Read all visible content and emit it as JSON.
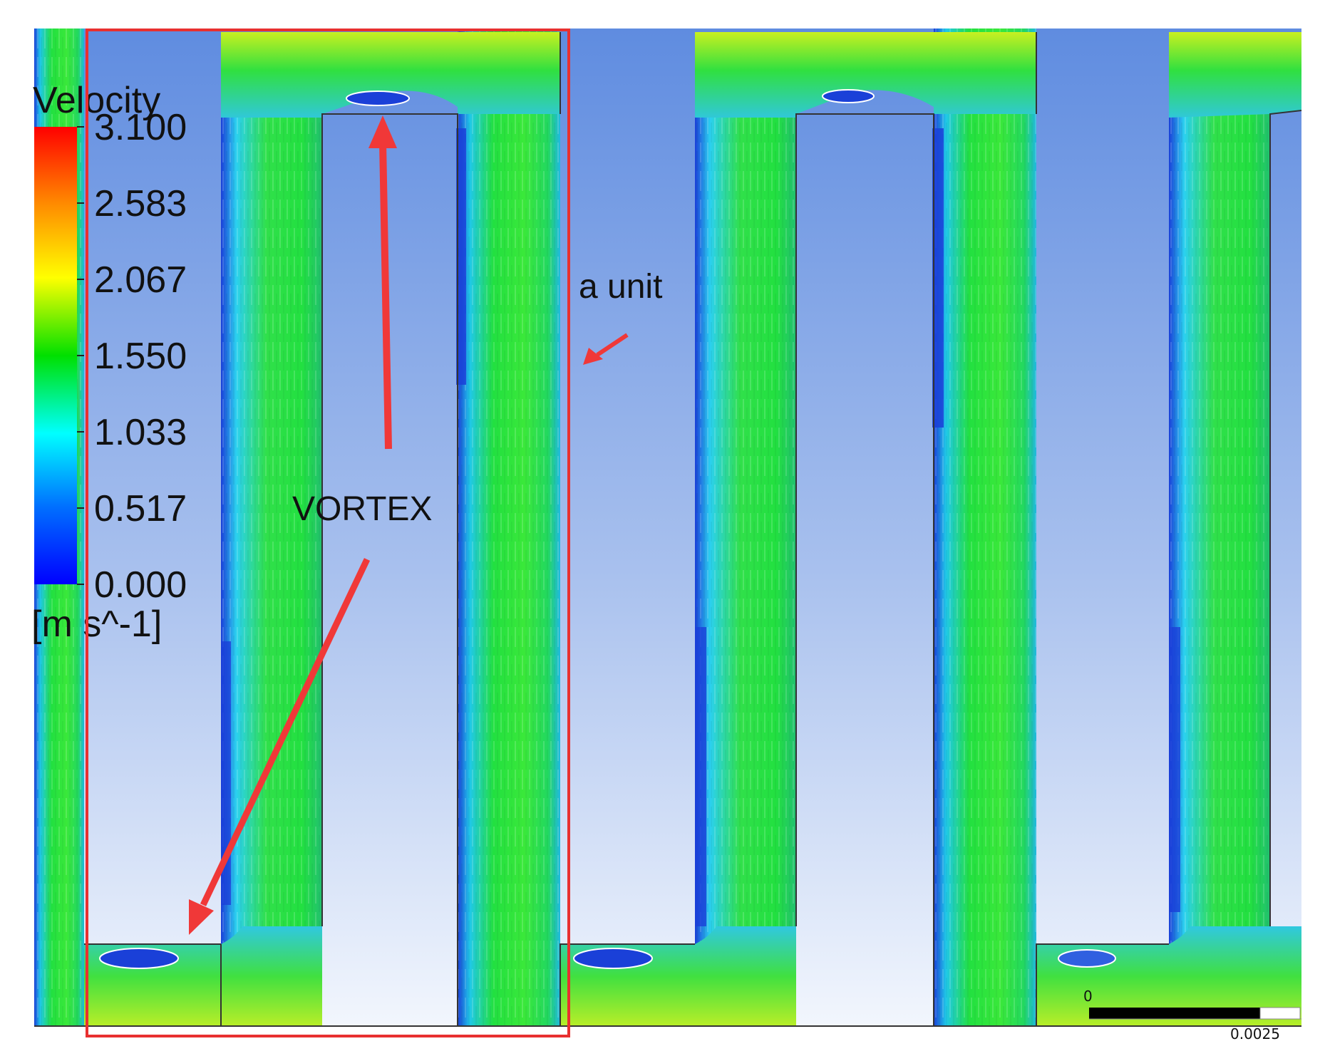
{
  "legend": {
    "title": "Velocity",
    "unit": "[m s^-1]",
    "ticks": [
      "3.100",
      "2.583",
      "2.067",
      "1.550",
      "1.033",
      "0.517",
      "0.000"
    ],
    "colors": [
      "#ff0000",
      "#ff9900",
      "#ffff00",
      "#00e000",
      "#00ffff",
      "#0060ff",
      "#0000ff"
    ]
  },
  "annotations": {
    "vortex": "VORTEX",
    "unit_label": "a unit"
  },
  "scale_bar": {
    "start": "0",
    "end": "0.0025"
  },
  "colors": {
    "flow_green": "#22e040",
    "flow_yellow": "#c8f020",
    "flow_blue": "#1040d0",
    "background_top": "#6490e0",
    "background_bottom": "#eaf0fb",
    "annotation_red": "#f03838",
    "box_red": "#e83030"
  }
}
